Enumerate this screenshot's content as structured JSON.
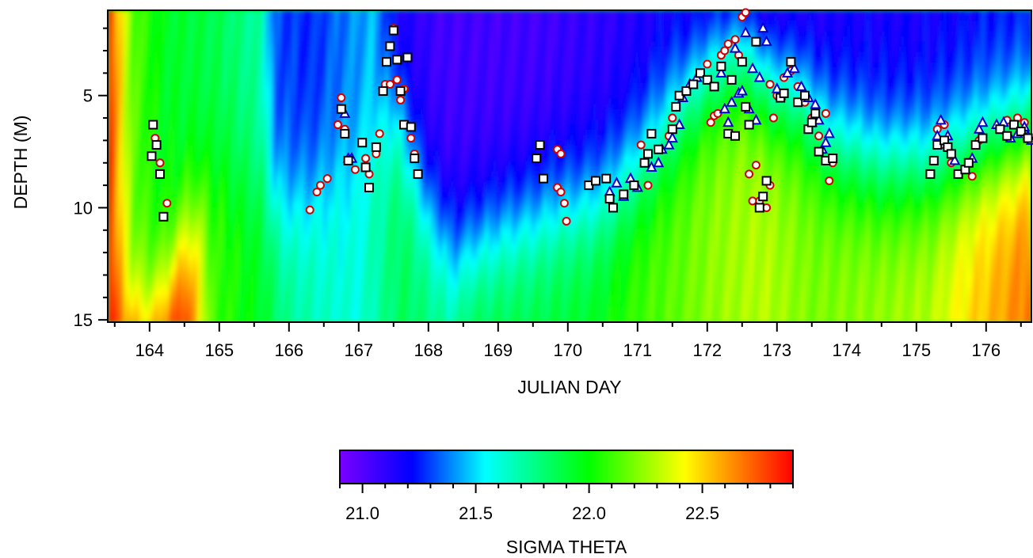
{
  "chart_data": {
    "type": "heatmap",
    "title": "",
    "xlabel": "JULIAN DAY",
    "ylabel": "DEPTH (M)",
    "xlim": [
      163.4,
      176.65
    ],
    "ylim": [
      15.1,
      1.2
    ],
    "y_inverted": true,
    "x_ticks": [
      164,
      165,
      166,
      167,
      168,
      169,
      170,
      171,
      172,
      173,
      174,
      175,
      176
    ],
    "y_ticks": [
      5,
      10,
      15
    ],
    "colorbar": {
      "label": "SIGMA THETA",
      "range": [
        20.9,
        22.9
      ],
      "ticks": [
        "21.0",
        "21.5",
        "22.0",
        "22.5"
      ],
      "colors": [
        "#7a00ff",
        "#0000ff",
        "#00ffff",
        "#00ff00",
        "#ffff00",
        "#ff0000"
      ]
    },
    "markers": {
      "square_color": "#000000",
      "circle_color": "#d00000",
      "triangle_color": "#0000cc",
      "squares": [
        [
          164.05,
          6.3
        ],
        [
          164.1,
          7.2
        ],
        [
          164.03,
          7.7
        ],
        [
          164.15,
          8.5
        ],
        [
          164.2,
          10.4
        ],
        [
          166.75,
          5.6
        ],
        [
          166.8,
          6.7
        ],
        [
          166.85,
          7.9
        ],
        [
          167.05,
          7.1
        ],
        [
          167.1,
          8.2
        ],
        [
          167.15,
          9.1
        ],
        [
          167.25,
          7.3
        ],
        [
          167.35,
          4.8
        ],
        [
          167.4,
          3.5
        ],
        [
          167.45,
          2.8
        ],
        [
          167.5,
          2.1
        ],
        [
          167.55,
          3.4
        ],
        [
          167.6,
          4.8
        ],
        [
          167.65,
          6.3
        ],
        [
          167.7,
          3.3
        ],
        [
          167.75,
          6.4
        ],
        [
          167.8,
          7.8
        ],
        [
          167.85,
          8.5
        ],
        [
          169.55,
          7.8
        ],
        [
          169.6,
          7.2
        ],
        [
          169.65,
          8.7
        ],
        [
          170.3,
          9.0
        ],
        [
          170.4,
          8.8
        ],
        [
          170.55,
          8.7
        ],
        [
          170.6,
          9.6
        ],
        [
          170.65,
          10.0
        ],
        [
          170.8,
          9.4
        ],
        [
          170.95,
          9.0
        ],
        [
          171.1,
          8.0
        ],
        [
          171.15,
          7.6
        ],
        [
          171.2,
          6.7
        ],
        [
          171.3,
          7.4
        ],
        [
          171.5,
          6.5
        ],
        [
          171.55,
          5.5
        ],
        [
          171.6,
          5.0
        ],
        [
          171.7,
          4.8
        ],
        [
          171.8,
          4.5
        ],
        [
          171.9,
          4.0
        ],
        [
          172.0,
          4.3
        ],
        [
          172.1,
          4.6
        ],
        [
          172.2,
          3.7
        ],
        [
          172.3,
          6.7
        ],
        [
          172.35,
          4.3
        ],
        [
          172.4,
          6.8
        ],
        [
          172.5,
          3.5
        ],
        [
          172.55,
          5.5
        ],
        [
          172.6,
          6.3
        ],
        [
          172.7,
          2.6
        ],
        [
          172.75,
          10.0
        ],
        [
          172.8,
          9.5
        ],
        [
          172.85,
          8.8
        ],
        [
          173.05,
          5.1
        ],
        [
          173.1,
          4.9
        ],
        [
          173.2,
          3.5
        ],
        [
          173.3,
          5.3
        ],
        [
          173.4,
          5.0
        ],
        [
          173.45,
          6.5
        ],
        [
          173.5,
          6.2
        ],
        [
          173.55,
          5.8
        ],
        [
          173.6,
          7.5
        ],
        [
          173.7,
          7.9
        ],
        [
          173.8,
          7.8
        ],
        [
          175.2,
          8.5
        ],
        [
          175.25,
          7.9
        ],
        [
          175.3,
          7.2
        ],
        [
          175.4,
          7.0
        ],
        [
          175.45,
          7.3
        ],
        [
          175.5,
          7.6
        ],
        [
          175.6,
          8.5
        ],
        [
          175.7,
          8.3
        ],
        [
          175.75,
          8.0
        ],
        [
          175.85,
          7.2
        ],
        [
          175.95,
          6.9
        ],
        [
          176.2,
          6.5
        ],
        [
          176.3,
          6.8
        ],
        [
          176.4,
          6.3
        ],
        [
          176.5,
          6.6
        ],
        [
          176.6,
          6.9
        ]
      ],
      "circles": [
        [
          164.08,
          6.9
        ],
        [
          164.15,
          8.0
        ],
        [
          164.25,
          9.8
        ],
        [
          166.3,
          10.1
        ],
        [
          166.4,
          9.3
        ],
        [
          166.45,
          9.0
        ],
        [
          166.55,
          8.7
        ],
        [
          166.7,
          6.3
        ],
        [
          166.75,
          5.1
        ],
        [
          166.8,
          6.5
        ],
        [
          166.95,
          8.3
        ],
        [
          167.1,
          7.8
        ],
        [
          167.15,
          8.5
        ],
        [
          167.25,
          7.6
        ],
        [
          167.3,
          6.7
        ],
        [
          167.38,
          4.5
        ],
        [
          167.45,
          4.5
        ],
        [
          167.5,
          2.0
        ],
        [
          167.55,
          4.3
        ],
        [
          167.6,
          5.2
        ],
        [
          167.65,
          4.7
        ],
        [
          167.75,
          6.9
        ],
        [
          167.8,
          7.6
        ],
        [
          169.85,
          7.4
        ],
        [
          169.9,
          7.6
        ],
        [
          169.85,
          9.1
        ],
        [
          169.9,
          9.3
        ],
        [
          169.95,
          9.8
        ],
        [
          169.98,
          10.6
        ],
        [
          171.05,
          7.2
        ],
        [
          171.15,
          9.0
        ],
        [
          171.45,
          6.8
        ],
        [
          171.5,
          6.0
        ],
        [
          172.0,
          3.6
        ],
        [
          172.05,
          6.2
        ],
        [
          172.1,
          5.9
        ],
        [
          172.15,
          5.8
        ],
        [
          172.2,
          3.2
        ],
        [
          172.25,
          3.0
        ],
        [
          172.3,
          2.7
        ],
        [
          172.4,
          2.5
        ],
        [
          172.45,
          3.2
        ],
        [
          172.5,
          1.5
        ],
        [
          172.55,
          1.3
        ],
        [
          172.6,
          8.5
        ],
        [
          172.65,
          9.7
        ],
        [
          172.7,
          8.1
        ],
        [
          172.75,
          9.7
        ],
        [
          172.8,
          9.5
        ],
        [
          172.85,
          10.0
        ],
        [
          172.9,
          9.0
        ],
        [
          172.95,
          6.0
        ],
        [
          172.9,
          4.5
        ],
        [
          173.0,
          5.0
        ],
        [
          173.1,
          4.2
        ],
        [
          173.2,
          3.9
        ],
        [
          173.3,
          4.6
        ],
        [
          173.4,
          5.3
        ],
        [
          173.5,
          6.0
        ],
        [
          173.6,
          6.8
        ],
        [
          173.7,
          5.8
        ],
        [
          173.75,
          8.8
        ],
        [
          173.8,
          8.0
        ],
        [
          175.3,
          6.5
        ],
        [
          175.35,
          7.2
        ],
        [
          175.4,
          6.3
        ],
        [
          175.5,
          8.0
        ],
        [
          175.8,
          8.6
        ],
        [
          175.9,
          7.0
        ],
        [
          176.3,
          6.1
        ],
        [
          176.45,
          6.0
        ],
        [
          176.55,
          6.2
        ]
      ],
      "triangles": [
        [
          166.8,
          5.8
        ],
        [
          166.85,
          7.8
        ],
        [
          166.9,
          7.8
        ],
        [
          170.6,
          9.3
        ],
        [
          170.7,
          8.9
        ],
        [
          170.8,
          9.5
        ],
        [
          170.9,
          8.7
        ],
        [
          171.0,
          9.1
        ],
        [
          171.2,
          8.2
        ],
        [
          171.3,
          8.0
        ],
        [
          171.35,
          7.4
        ],
        [
          171.45,
          7.2
        ],
        [
          171.5,
          6.9
        ],
        [
          171.6,
          6.3
        ],
        [
          171.65,
          5.1
        ],
        [
          171.75,
          4.5
        ],
        [
          171.85,
          4.2
        ],
        [
          172.2,
          4.0
        ],
        [
          172.25,
          5.6
        ],
        [
          172.3,
          6.2
        ],
        [
          172.35,
          5.3
        ],
        [
          172.4,
          2.9
        ],
        [
          172.45,
          4.9
        ],
        [
          172.5,
          4.8
        ],
        [
          172.55,
          2.2
        ],
        [
          172.6,
          5.6
        ],
        [
          172.65,
          3.8
        ],
        [
          172.7,
          6.1
        ],
        [
          172.75,
          4.2
        ],
        [
          172.8,
          2.0
        ],
        [
          172.85,
          2.6
        ],
        [
          173.0,
          4.7
        ],
        [
          173.05,
          5.0
        ],
        [
          173.15,
          4.0
        ],
        [
          173.25,
          3.8
        ],
        [
          173.35,
          4.6
        ],
        [
          173.45,
          5.1
        ],
        [
          173.5,
          6.2
        ],
        [
          173.55,
          5.4
        ],
        [
          173.6,
          6.1
        ],
        [
          173.65,
          7.4
        ],
        [
          173.7,
          7.1
        ],
        [
          173.75,
          6.7
        ],
        [
          175.3,
          6.8
        ],
        [
          175.35,
          6.1
        ],
        [
          175.45,
          6.8
        ],
        [
          175.55,
          7.9
        ],
        [
          175.7,
          8.3
        ],
        [
          175.8,
          7.8
        ],
        [
          175.9,
          6.5
        ],
        [
          175.95,
          6.2
        ],
        [
          176.15,
          6.3
        ],
        [
          176.25,
          6.2
        ],
        [
          176.35,
          6.9
        ],
        [
          176.45,
          6.7
        ],
        [
          176.55,
          6.4
        ],
        [
          176.6,
          6.8
        ],
        [
          176.65,
          7.0
        ]
      ]
    }
  }
}
